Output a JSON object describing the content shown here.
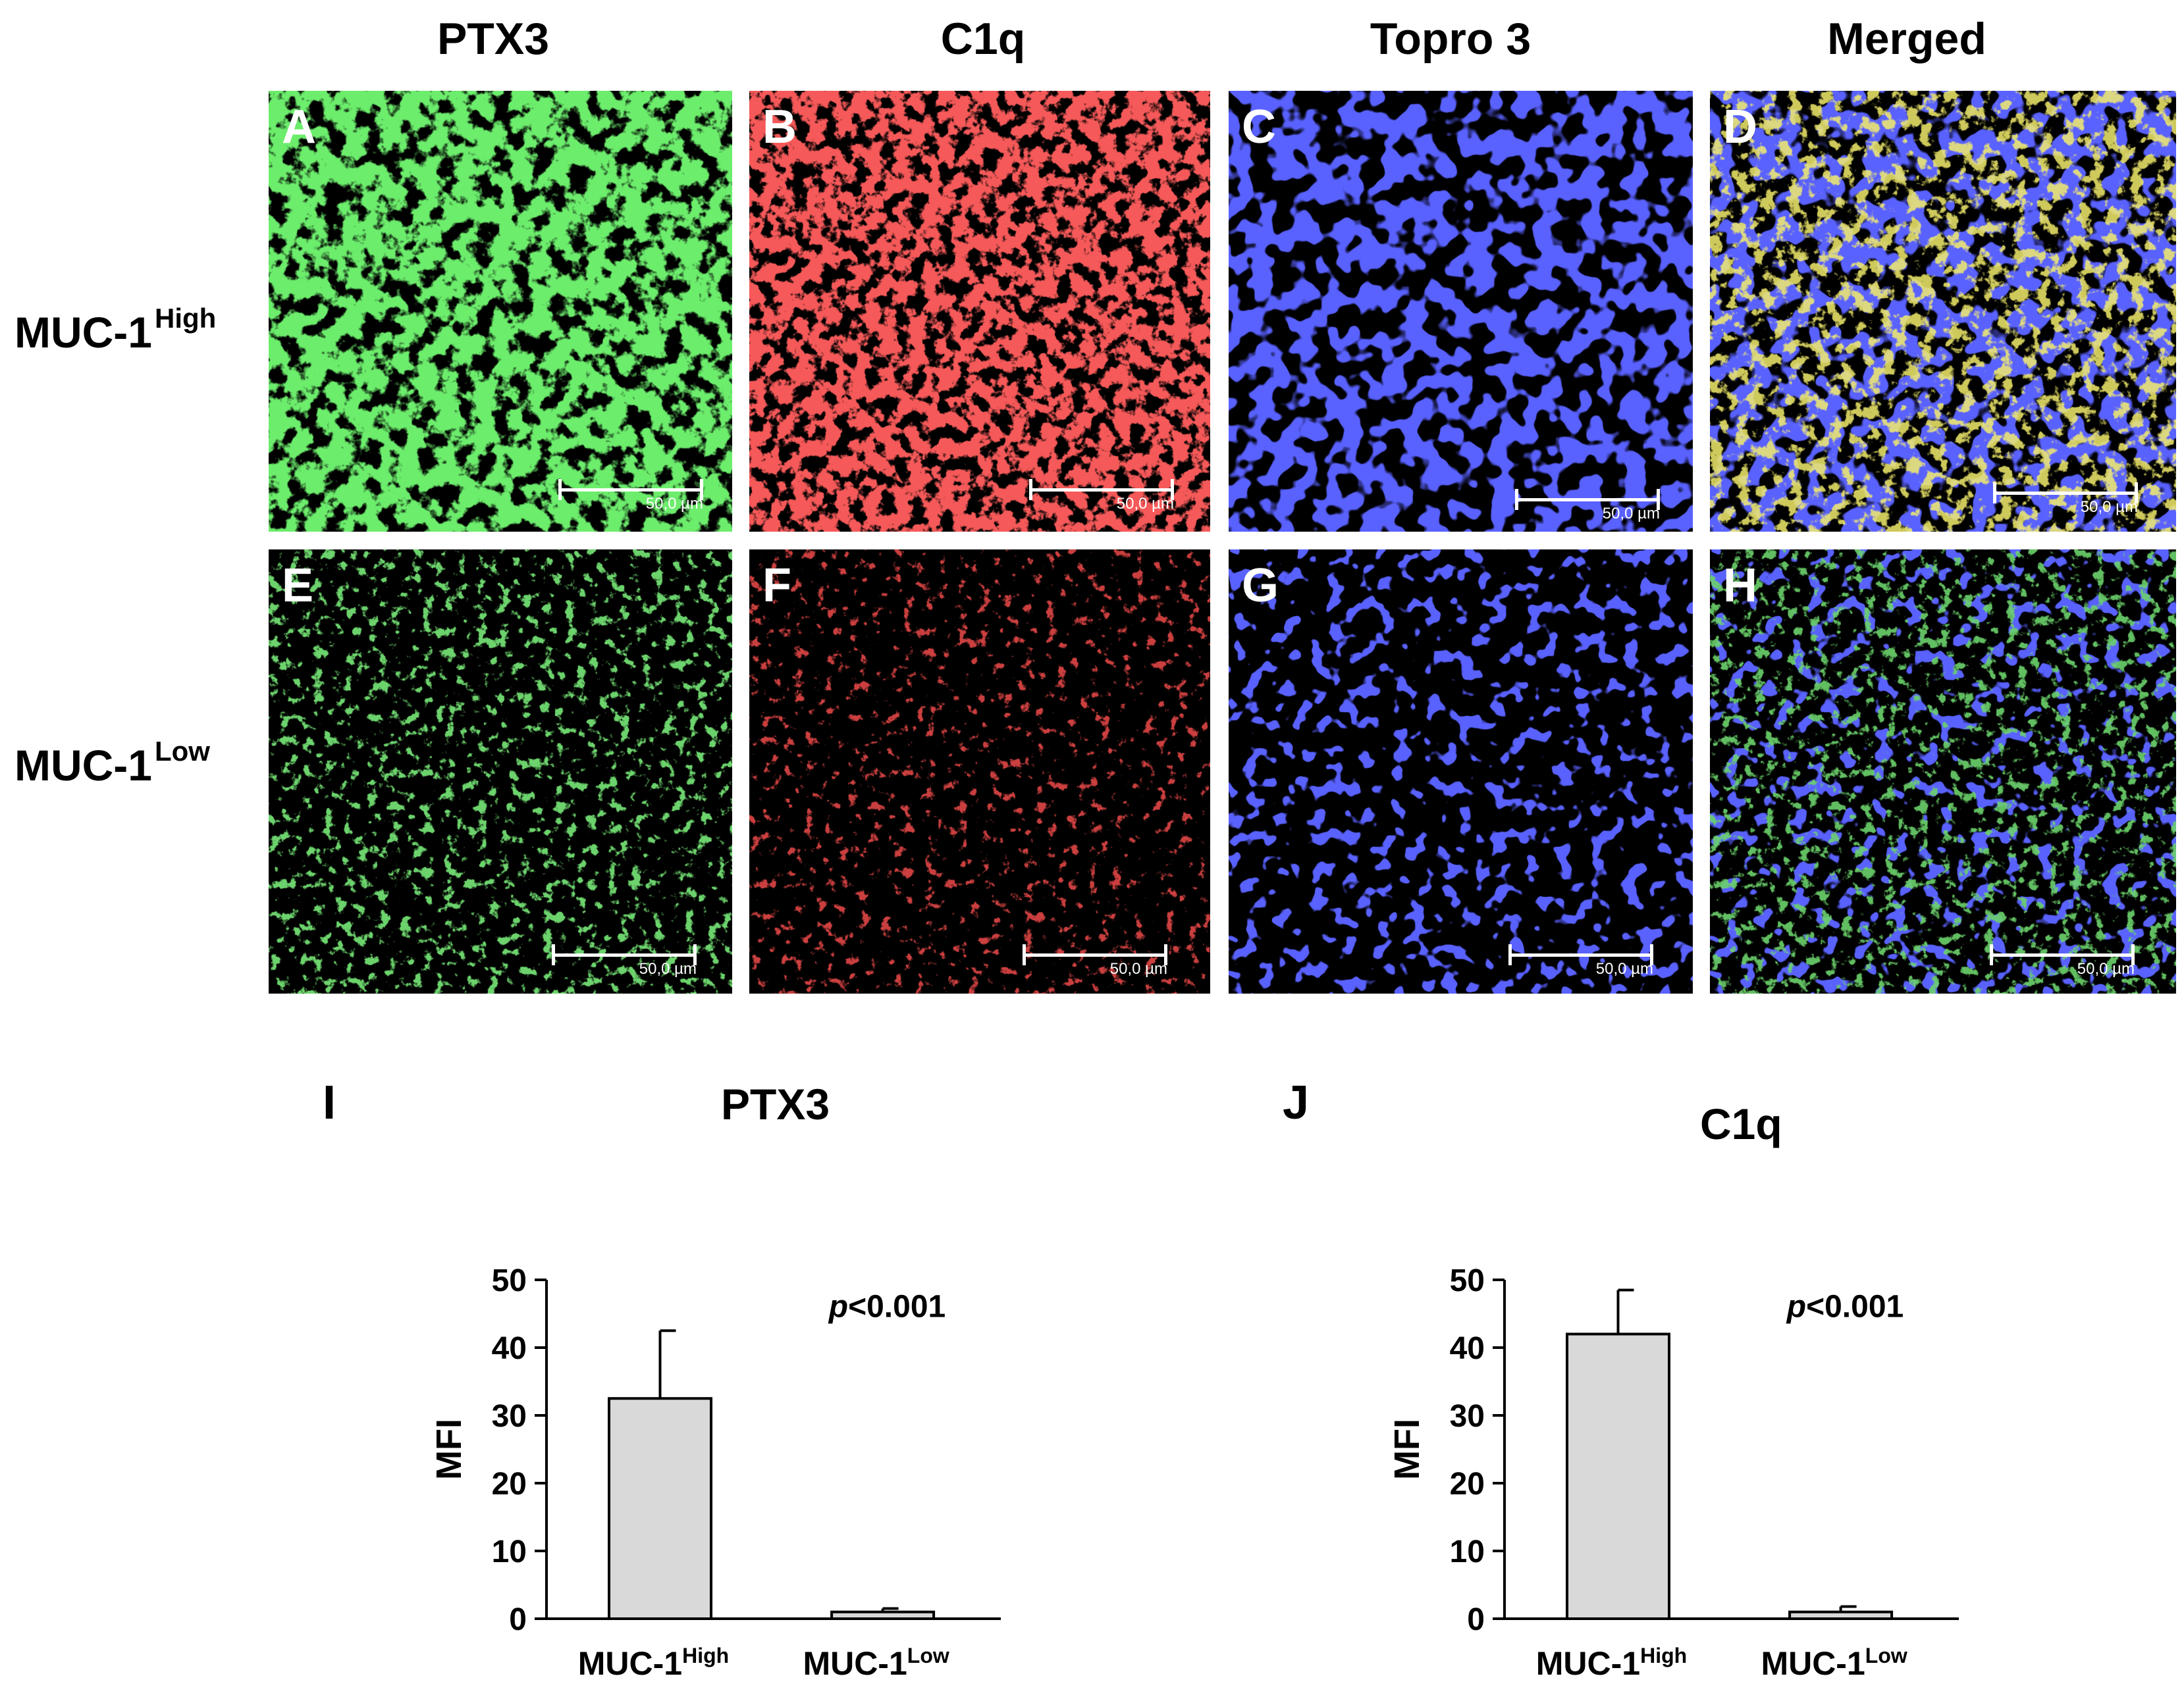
{
  "figure": {
    "column_titles": [
      "PTX3",
      "C1q",
      "Topro 3",
      "Merged"
    ],
    "row_labels": [
      {
        "base": "MUC-1",
        "sup": "High"
      },
      {
        "base": "MUC-1",
        "sup": "Low"
      }
    ],
    "panel_letters": [
      "A",
      "B",
      "C",
      "D",
      "E",
      "F",
      "G",
      "H"
    ],
    "scale_bar_text": "50,0 µm",
    "colors": {
      "ptx3": "#2fd12f",
      "c1q": "#e81b1b",
      "topro": "#1a20ff",
      "bar_fill": "#d9d9d9"
    }
  },
  "chart_data": [
    {
      "type": "bar",
      "panel_letter": "I",
      "title": "PTX3",
      "ylabel": "MFI",
      "ylim": [
        0,
        50
      ],
      "yticks": [
        0,
        10,
        20,
        30,
        40,
        50
      ],
      "categories": [
        {
          "base": "MUC-1",
          "sup": "High"
        },
        {
          "base": "MUC-1",
          "sup": "Low"
        }
      ],
      "values": [
        32.5,
        1.0
      ],
      "errors": [
        10.0,
        0.5
      ],
      "annotation_italic": "p",
      "annotation_rest": "<0.001"
    },
    {
      "type": "bar",
      "panel_letter": "J",
      "title": "C1q",
      "ylabel": "MFI",
      "ylim": [
        0,
        50
      ],
      "yticks": [
        0,
        10,
        20,
        30,
        40,
        50
      ],
      "categories": [
        {
          "base": "MUC-1",
          "sup": "High"
        },
        {
          "base": "MUC-1",
          "sup": "Low"
        }
      ],
      "values": [
        42.0,
        1.0
      ],
      "errors": [
        6.5,
        0.8
      ],
      "annotation_italic": "p",
      "annotation_rest": "<0.001"
    }
  ]
}
